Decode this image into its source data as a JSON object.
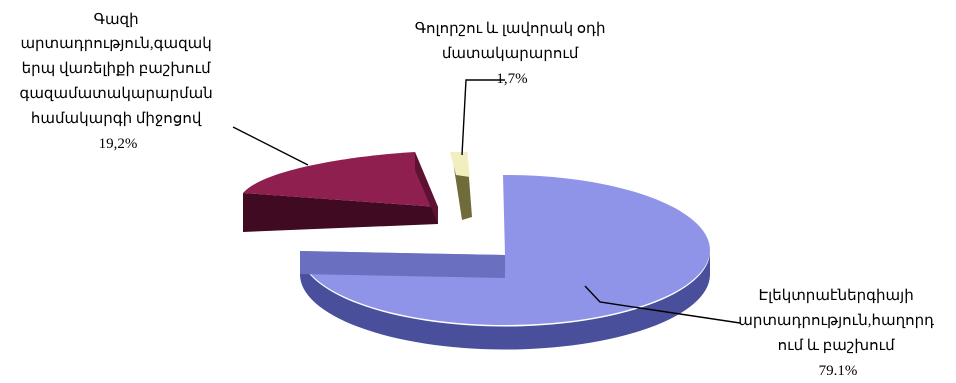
{
  "chart_data": {
    "type": "pie",
    "style": "3d-exploded",
    "slices": [
      {
        "label_lines": [
          "Էլեկտրաէներգիայի",
          "արտադրություն,հաղորդ",
          "ում և բաշխում"
        ],
        "value": 79.1,
        "value_text": "79.1%",
        "color": "#8f94e8"
      },
      {
        "label_lines": [
          "Գազի",
          "արտադրություն,գազակ",
          "երպ վառելիքի բաշխում",
          "գազամատակարարման",
          "համակարգի միջոցով"
        ],
        "value": 19.2,
        "value_text": "19,2%",
        "color": "#8e1f4e"
      },
      {
        "label_lines": [
          "Գոլորշու և լավորակ օդի",
          "մատակարարում"
        ],
        "value": 1.7,
        "value_text": "1,7%",
        "color": "#f1efc0"
      }
    ],
    "legend": "none"
  }
}
